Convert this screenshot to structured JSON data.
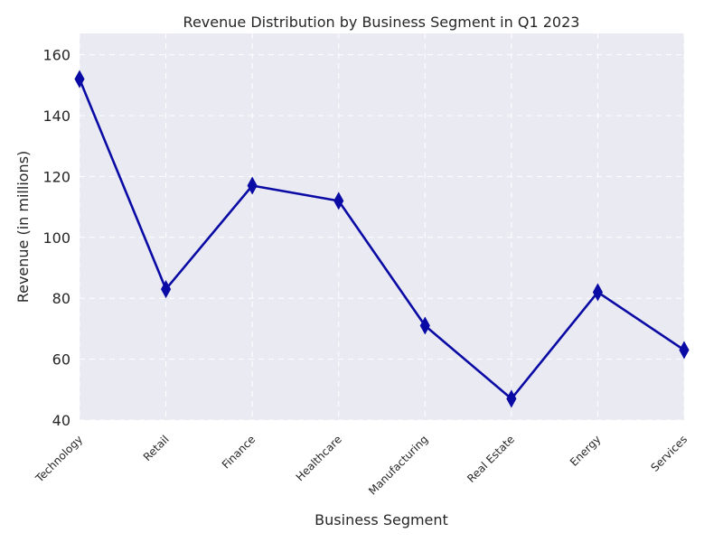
{
  "chart_data": {
    "type": "line",
    "title": "Revenue Distribution by Business Segment in Q1 2023",
    "xlabel": "Business Segment",
    "ylabel": "Revenue (in millions)",
    "categories": [
      "Technology",
      "Retail",
      "Finance",
      "Healthcare",
      "Manufacturing",
      "Real Estate",
      "Energy",
      "Services"
    ],
    "series": [
      {
        "values": [
          152,
          83,
          117,
          112,
          71,
          47,
          82,
          63
        ],
        "color": "#0a0aa5",
        "marker": "thin-diamond"
      }
    ],
    "ylim": [
      40,
      167
    ],
    "yticks": [
      "40",
      "60",
      "80",
      "100",
      "120",
      "140",
      "160"
    ],
    "grid": true,
    "grid_style": "dashed",
    "plot_background": "#eaeaf2",
    "legend": "none"
  }
}
